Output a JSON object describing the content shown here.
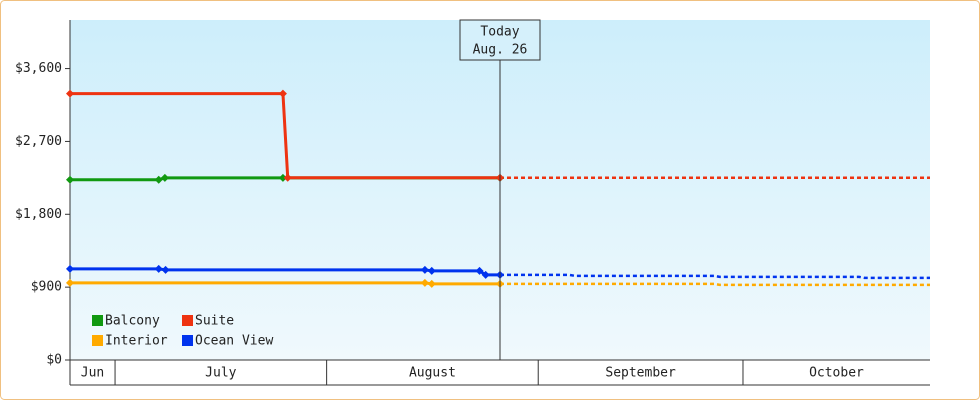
{
  "chart_data": {
    "type": "line",
    "xlim": [
      -6.6,
      119.4
    ],
    "ylim": [
      0,
      4200
    ],
    "yticks": [
      {
        "value": 0,
        "label": "$0"
      },
      {
        "value": 900,
        "label": "$900"
      },
      {
        "value": 1800,
        "label": "$1,800"
      },
      {
        "value": 2700,
        "label": "$2,700"
      },
      {
        "value": 3600,
        "label": "$3,600"
      }
    ],
    "month_bands": [
      {
        "label": "Jun",
        "start": -6.6,
        "end": 0
      },
      {
        "label": "July",
        "start": 0,
        "end": 31
      },
      {
        "label": "August",
        "start": 31,
        "end": 62
      },
      {
        "label": "September",
        "start": 62,
        "end": 92
      },
      {
        "label": "October",
        "start": 92,
        "end": 119.4
      }
    ],
    "today": {
      "x": 56.4,
      "label": "Today",
      "date": "Aug. 26"
    },
    "forecast_from": 56.4,
    "legend": "bottom-left",
    "series": [
      {
        "name": "Balcony",
        "color": "#119911",
        "x": [
          -6.6,
          6.4,
          7.3,
          24.6,
          56.4
        ],
        "values": [
          2227,
          2227,
          2250,
          2250,
          2250
        ]
      },
      {
        "name": "Suite",
        "color": "#ee3311",
        "x": [
          -6.6,
          24.6,
          25.3,
          56.4,
          119.4
        ],
        "values": [
          3290,
          3290,
          2251,
          2251,
          2251
        ]
      },
      {
        "name": "Interior",
        "color": "#ffaa00",
        "x": [
          -6.6,
          45.4,
          46.4,
          56.4,
          87.8,
          88.6,
          119.4
        ],
        "values": [
          952,
          952,
          940,
          940,
          940,
          928,
          928
        ]
      },
      {
        "name": "Ocean View",
        "color": "#0033ee",
        "x": [
          -6.6,
          6.4,
          7.4,
          45.4,
          46.4,
          53.4,
          54.3,
          56.4,
          66.6,
          67.4,
          87.8,
          88.6,
          109,
          109.8,
          119.4
        ],
        "values": [
          1126,
          1126,
          1113,
          1113,
          1101,
          1101,
          1051,
          1051,
          1051,
          1039,
          1039,
          1027,
          1027,
          1014,
          1014
        ]
      }
    ]
  }
}
